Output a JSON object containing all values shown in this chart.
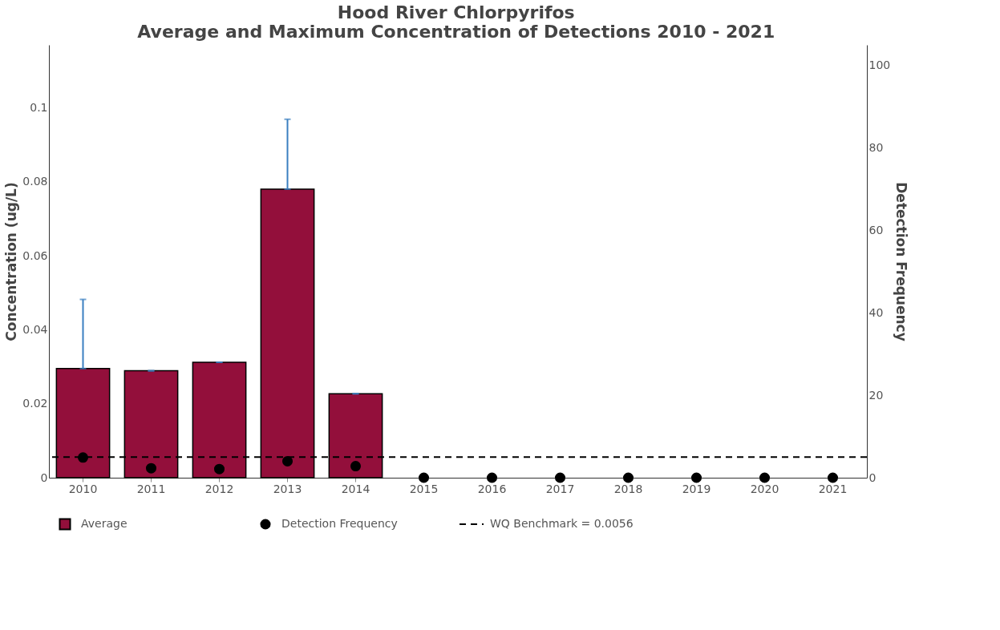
{
  "chart_data": {
    "type": "bar",
    "title": "Hood River Chlorpyrifos\nAverage and Maximum Concentration of Detections 2010 - 2021",
    "categories": [
      "2010",
      "2011",
      "2012",
      "2013",
      "2014",
      "2015",
      "2016",
      "2017",
      "2018",
      "2019",
      "2020",
      "2021"
    ],
    "series": [
      {
        "name": "Average",
        "color": "#930f3b",
        "values": [
          0.0295,
          0.0289,
          0.0312,
          0.078,
          0.0227,
          null,
          null,
          null,
          null,
          null,
          null,
          null
        ],
        "errors": [
          [
            0.0295,
            0.0482
          ],
          [
            0.0289,
            0.0289
          ],
          [
            0.0312,
            0.0312
          ],
          [
            0.078,
            0.0969
          ],
          [
            0.0227,
            0.0227
          ],
          null,
          null,
          null,
          null,
          null,
          null,
          null
        ]
      },
      {
        "name": "Detection Frequency",
        "type": "scatter",
        "axis": "y2",
        "color": "#000000",
        "values": [
          4.9,
          2.3,
          2.1,
          4.0,
          2.8,
          0,
          0,
          0,
          0,
          0,
          0,
          0
        ]
      }
    ],
    "ref_lines": [
      {
        "axis": "y",
        "value": 0.0056,
        "label": "WQ Benchmark =  0.0056",
        "color": "#000000",
        "line_style": "dashed"
      }
    ],
    "ylabel": "Concentration (ug/L)",
    "y2label": "Detection Frequency",
    "ylim": [
      0,
      0.117
    ],
    "yticks": [
      0,
      0.02,
      0.04,
      0.06,
      0.08,
      0.1
    ],
    "y2lim": [
      0,
      105
    ],
    "y2ticks": [
      0,
      20,
      40,
      60,
      80,
      100
    ],
    "legend": "bottom left",
    "grid": false,
    "marker": "circle"
  }
}
